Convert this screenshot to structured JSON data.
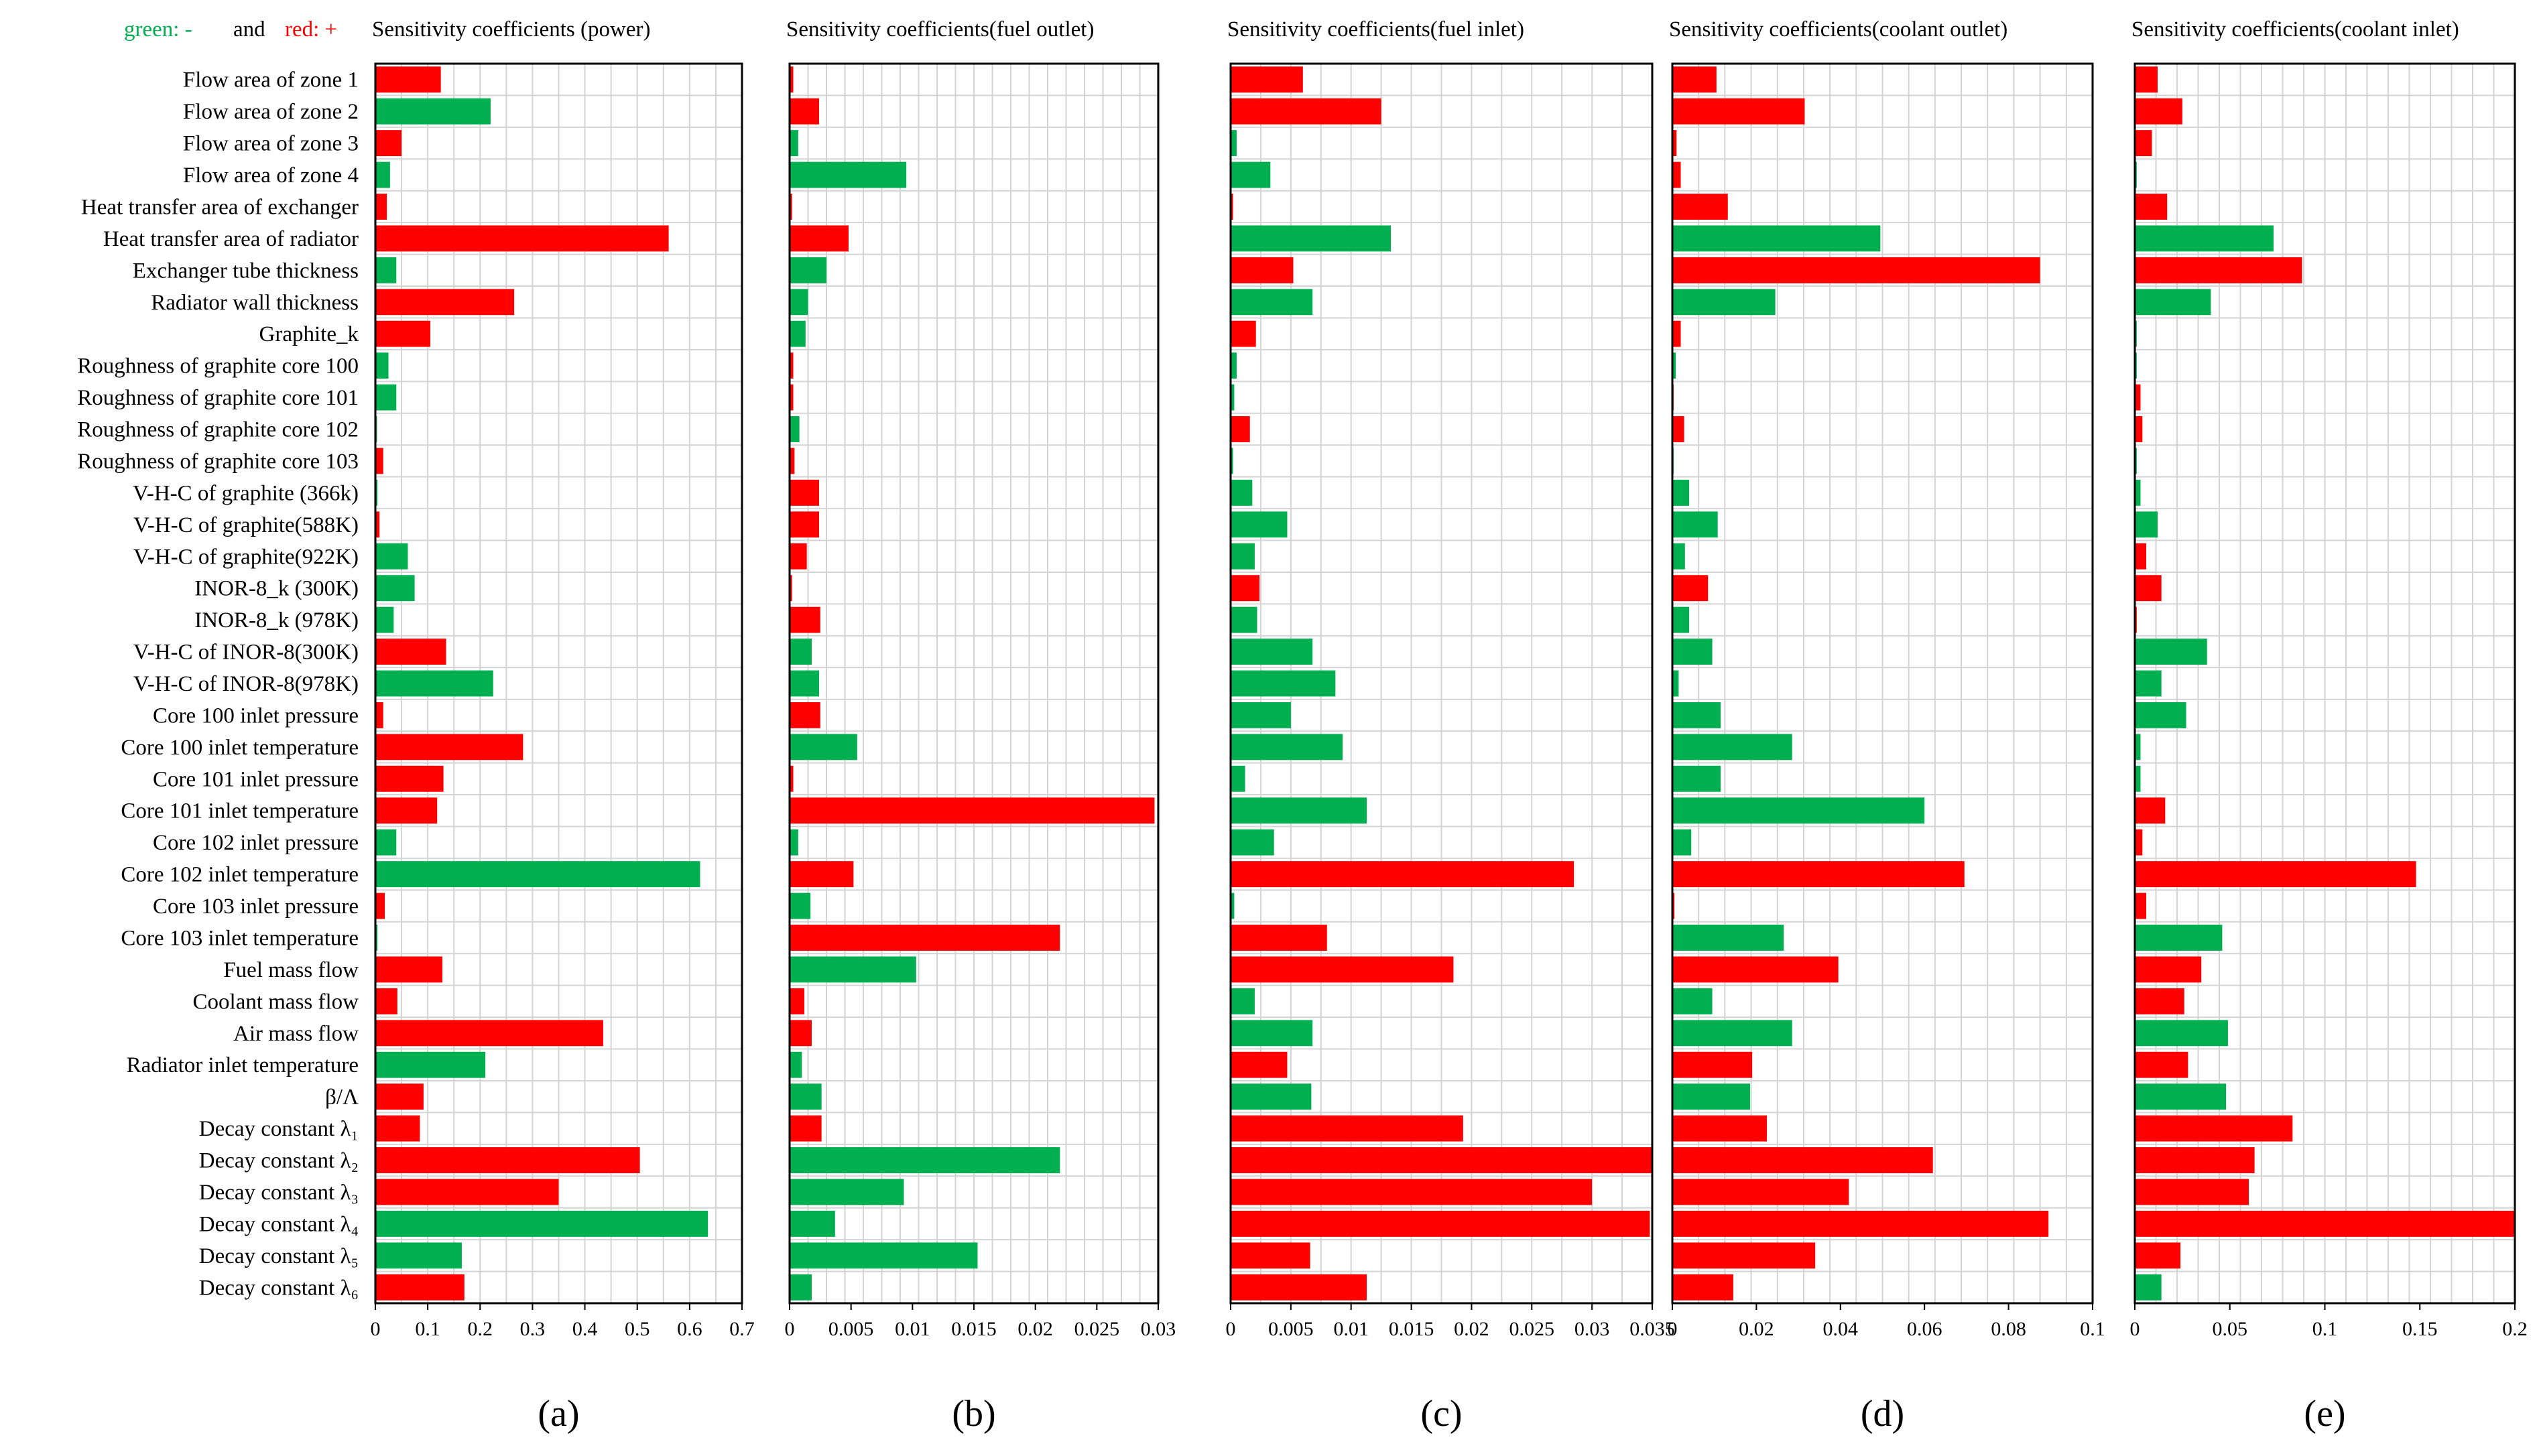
{
  "legend": {
    "neg_label": "green: -",
    "neg_color": "#00b050",
    "and_label": "and",
    "pos_label": "red: +",
    "pos_color": "#ff0000"
  },
  "labels": [
    "Flow area of zone 1",
    "Flow area of zone 2",
    "Flow area of zone 3",
    "Flow area of zone 4",
    "Heat transfer area of exchanger",
    "Heat transfer area of radiator",
    "Exchanger tube thickness",
    "Radiator wall thickness",
    "Graphite_k",
    "Roughness of graphite core 100",
    "Roughness of graphite core 101",
    "Roughness of graphite core 102",
    "Roughness of graphite core 103",
    "V-H-C of graphite (366k)",
    "V-H-C of graphite(588K)",
    "V-H-C of graphite(922K)",
    "INOR-8_k (300K)",
    "INOR-8_k (978K)",
    "V-H-C of INOR-8(300K)",
    "V-H-C of INOR-8(978K)",
    "Core 100 inlet pressure",
    "Core 100 inlet temperature",
    "Core 101 inlet pressure",
    "Core 101 inlet temperature",
    "Core 102 inlet pressure",
    "Core 102 inlet temperature",
    "Core 103 inlet pressure",
    "Core 103 inlet temperature",
    "Fuel mass flow",
    "Coolant mass flow",
    "Air mass flow",
    "Radiator inlet temperature",
    "β/Λ",
    "Decay constant λ₁",
    "Decay constant λ₂",
    "Decay constant λ₃",
    "Decay constant λ₄",
    "Decay constant λ₅",
    "Decay constant λ₆"
  ],
  "chart_data": [
    {
      "type": "bar",
      "orientation": "horizontal",
      "title": "Sensitivity coefficients (power)",
      "caption": "(a)",
      "xlim": [
        0,
        0.7
      ],
      "xticks": [
        "0",
        "0.1",
        "0.2",
        "0.3",
        "0.4",
        "0.5",
        "0.6",
        "0.7"
      ],
      "values": [
        0.125,
        0.22,
        0.05,
        0.028,
        0.022,
        0.56,
        0.04,
        0.265,
        0.105,
        0.025,
        0.04,
        0.003,
        0.015,
        0.004,
        0.008,
        0.062,
        0.075,
        0.035,
        0.135,
        0.225,
        0.015,
        0.282,
        0.13,
        0.118,
        0.04,
        0.62,
        0.018,
        0.004,
        0.128,
        0.042,
        0.435,
        0.21,
        0.092,
        0.085,
        0.505,
        0.35,
        0.635,
        0.165,
        0.17
      ],
      "signs": [
        "+",
        "-",
        "+",
        "-",
        "+",
        "+",
        "-",
        "+",
        "+",
        "-",
        "-",
        "-",
        "+",
        "-",
        "+",
        "-",
        "-",
        "-",
        "+",
        "-",
        "+",
        "+",
        "+",
        "+",
        "-",
        "-",
        "+",
        "-",
        "+",
        "+",
        "+",
        "-",
        "+",
        "+",
        "+",
        "+",
        "-",
        "-",
        "+"
      ]
    },
    {
      "type": "bar",
      "orientation": "horizontal",
      "title": "Sensitivity coefficients(fuel outlet)",
      "caption": "(b)",
      "xlim": [
        0,
        0.03
      ],
      "xticks": [
        "0",
        "0.005",
        "0.01",
        "0.015",
        "0.02",
        "0.025",
        "0.03"
      ],
      "values": [
        0.0003,
        0.0024,
        0.0007,
        0.0095,
        0.0002,
        0.0048,
        0.003,
        0.0015,
        0.0013,
        0.0003,
        0.0003,
        0.0008,
        0.0004,
        0.0024,
        0.0024,
        0.0014,
        0.0002,
        0.0025,
        0.0018,
        0.0024,
        0.0025,
        0.0055,
        0.0003,
        0.0297,
        0.0007,
        0.0052,
        0.0017,
        0.022,
        0.0103,
        0.0012,
        0.0018,
        0.001,
        0.0026,
        0.0026,
        0.022,
        0.0093,
        0.0037,
        0.0153,
        0.0018
      ],
      "signs": [
        "+",
        "+",
        "-",
        "-",
        "+",
        "+",
        "-",
        "-",
        "-",
        "+",
        "+",
        "-",
        "+",
        "+",
        "+",
        "+",
        "+",
        "+",
        "-",
        "-",
        "+",
        "-",
        "+",
        "+",
        "-",
        "+",
        "-",
        "+",
        "-",
        "+",
        "+",
        "-",
        "-",
        "+",
        "-",
        "-",
        "-",
        "-",
        "-"
      ]
    },
    {
      "type": "bar",
      "orientation": "horizontal",
      "title": "Sensitivity coefficients(fuel inlet)",
      "caption": "(c)",
      "xlim": [
        0,
        0.035
      ],
      "xticks": [
        "0",
        "0.005",
        "0.01",
        "0.015",
        "0.02",
        "0.025",
        "0.03",
        "0.035"
      ],
      "values": [
        0.006,
        0.0125,
        0.0005,
        0.0033,
        0.0002,
        0.0133,
        0.0052,
        0.0068,
        0.0021,
        0.0005,
        0.0003,
        0.0016,
        0.0002,
        0.0018,
        0.0047,
        0.002,
        0.0024,
        0.0022,
        0.0068,
        0.0087,
        0.005,
        0.0093,
        0.0012,
        0.0113,
        0.0036,
        0.0285,
        0.0003,
        0.008,
        0.0185,
        0.002,
        0.0068,
        0.0047,
        0.0067,
        0.0193,
        0.035,
        0.03,
        0.0348,
        0.0066,
        0.0113
      ],
      "signs": [
        "+",
        "+",
        "-",
        "-",
        "+",
        "-",
        "+",
        "-",
        "+",
        "-",
        "-",
        "+",
        "-",
        "-",
        "-",
        "-",
        "+",
        "-",
        "-",
        "-",
        "-",
        "-",
        "-",
        "-",
        "-",
        "+",
        "-",
        "+",
        "+",
        "-",
        "-",
        "+",
        "-",
        "+",
        "+",
        "+",
        "+",
        "+",
        "+"
      ]
    },
    {
      "type": "bar",
      "orientation": "horizontal",
      "title": "Sensitivity coefficients(coolant outlet)",
      "caption": "(d)",
      "xlim": [
        0,
        0.1
      ],
      "xticks": [
        "0",
        "0.02",
        "0.04",
        "0.06",
        "0.08",
        "0.1"
      ],
      "values": [
        0.0105,
        0.0315,
        0.001,
        0.002,
        0.0132,
        0.0495,
        0.0875,
        0.0245,
        0.002,
        0.0008,
        0.0003,
        0.0028,
        0.0003,
        0.004,
        0.0108,
        0.003,
        0.0085,
        0.004,
        0.0095,
        0.0015,
        0.0115,
        0.0285,
        0.0115,
        0.06,
        0.0045,
        0.0695,
        0.0005,
        0.0265,
        0.0395,
        0.0095,
        0.0285,
        0.019,
        0.0185,
        0.0225,
        0.062,
        0.042,
        0.0895,
        0.034,
        0.0145
      ],
      "signs": [
        "+",
        "+",
        "+",
        "+",
        "+",
        "-",
        "+",
        "-",
        "+",
        "-",
        "+",
        "+",
        "-",
        "-",
        "-",
        "-",
        "+",
        "-",
        "-",
        "-",
        "-",
        "-",
        "-",
        "-",
        "-",
        "+",
        "+",
        "-",
        "+",
        "-",
        "-",
        "+",
        "-",
        "+",
        "+",
        "+",
        "+",
        "+",
        "+"
      ]
    },
    {
      "type": "bar",
      "orientation": "horizontal",
      "title": "Sensitivity coefficients(coolant inlet)",
      "caption": "(e)",
      "xlim": [
        0,
        0.2
      ],
      "xticks": [
        "0",
        "0.05",
        "0.1",
        "0.15",
        "0.2"
      ],
      "values": [
        0.012,
        0.025,
        0.009,
        0.001,
        0.017,
        0.073,
        0.088,
        0.04,
        0.001,
        0.001,
        0.003,
        0.004,
        0.001,
        0.003,
        0.012,
        0.006,
        0.014,
        0.001,
        0.038,
        0.014,
        0.027,
        0.003,
        0.003,
        0.016,
        0.004,
        0.148,
        0.006,
        0.046,
        0.035,
        0.026,
        0.049,
        0.028,
        0.048,
        0.083,
        0.063,
        0.06,
        0.2,
        0.024,
        0.014
      ],
      "signs": [
        "+",
        "+",
        "+",
        "-",
        "+",
        "-",
        "+",
        "-",
        "-",
        "-",
        "+",
        "+",
        "-",
        "-",
        "-",
        "+",
        "+",
        "+",
        "-",
        "-",
        "-",
        "-",
        "-",
        "+",
        "+",
        "+",
        "+",
        "-",
        "+",
        "+",
        "-",
        "+",
        "-",
        "+",
        "+",
        "+",
        "+",
        "+",
        "-"
      ]
    }
  ]
}
